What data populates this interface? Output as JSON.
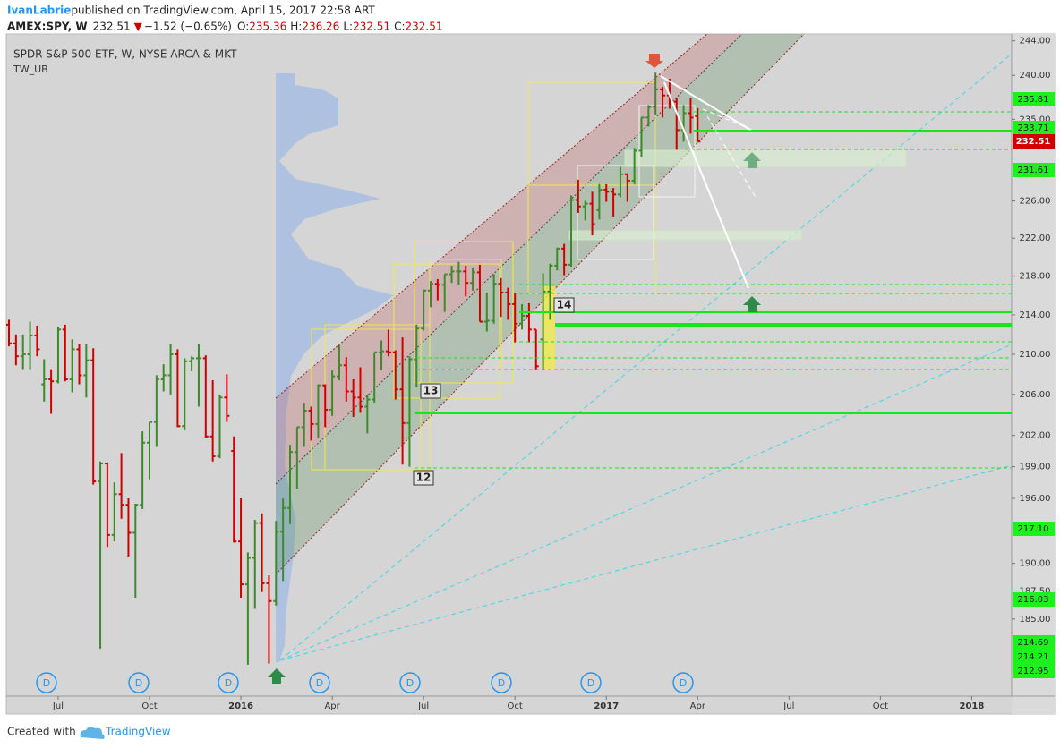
{
  "header": {
    "author": "IvanLabrie",
    "published": " published on TradingView.com, April 15, 2017 22:58 ART",
    "symbol": "AMEX:SPY, W",
    "last": "232.51",
    "direction": "▼",
    "change": "−1.52 (−0.65%)",
    "open_label": "O:",
    "open": "235.36",
    "high_label": "H:",
    "high": "236.26",
    "low_label": "L:",
    "low": "232.51",
    "close_label": "C:",
    "close": "232.51"
  },
  "footer": {
    "created": "Created with",
    "brand": "TradingView"
  },
  "chart_data": {
    "type": "ohlc",
    "title": "SPDR S&P 500 ETF, W, NYSE ARCA & MKT",
    "subtitle": "TW_UB",
    "log_scale": true,
    "grid": false,
    "up_color": "#3d8a2a",
    "down_color": "#d10000",
    "ylim": [
      178.3,
      244.8
    ],
    "yticks": [
      {
        "value": 244,
        "label": "244.00"
      },
      {
        "value": 240,
        "label": "240.00"
      },
      {
        "value": 235,
        "label": "235.00"
      },
      {
        "value": 226,
        "label": "226.00"
      },
      {
        "value": 222,
        "label": "222.00"
      },
      {
        "value": 218,
        "label": "218.00"
      },
      {
        "value": 214,
        "label": "214.00"
      },
      {
        "value": 210,
        "label": "210.00"
      },
      {
        "value": 206,
        "label": "206.00"
      },
      {
        "value": 202,
        "label": "202.00"
      },
      {
        "value": 199,
        "label": "199.00"
      },
      {
        "value": 196,
        "label": "196.00"
      },
      {
        "value": 190,
        "label": "190.00"
      },
      {
        "value": 187.5,
        "label": "187.50"
      },
      {
        "value": 185,
        "label": "185.00"
      }
    ],
    "price_labels": [
      "235.81",
      "233.71",
      "232.51",
      "231.61",
      "217.10",
      "216.03",
      "214.69",
      "214.21",
      "212.95"
    ],
    "annotations": [
      "12",
      "13",
      "14"
    ],
    "event_markers": [
      "D",
      "D",
      "D",
      "D",
      "D",
      "D",
      "D",
      "D"
    ],
    "categories": [
      null,
      null,
      null,
      null,
      null,
      null,
      null,
      "Jul",
      null,
      null,
      null,
      null,
      null,
      null,
      null,
      null,
      null,
      null,
      null,
      null,
      "Oct",
      null,
      null,
      null,
      null,
      null,
      null,
      null,
      null,
      null,
      null,
      null,
      null,
      "2016",
      null,
      null,
      null,
      null,
      null,
      null,
      null,
      null,
      null,
      null,
      null,
      null,
      "Apr",
      null,
      null,
      null,
      null,
      null,
      null,
      null,
      null,
      null,
      null,
      null,
      null,
      "Jul",
      null,
      null,
      null,
      null,
      null,
      null,
      null,
      null,
      null,
      null,
      null,
      null,
      "Oct",
      null,
      null,
      null,
      null,
      null,
      null,
      null,
      null,
      null,
      null,
      null,
      null,
      "2017",
      null,
      null,
      null,
      null,
      null,
      null,
      null,
      null,
      null,
      null,
      null,
      null,
      "Apr",
      null,
      null,
      null,
      null,
      null,
      null,
      null,
      null,
      null,
      null,
      null,
      null,
      "Jul",
      null,
      null,
      null,
      null,
      null,
      null,
      null,
      null,
      null,
      null,
      null,
      null,
      "Oct",
      null,
      null,
      null,
      null,
      null,
      null,
      null,
      null,
      null,
      null,
      null,
      null,
      "2018",
      null,
      null,
      null,
      null,
      null
    ],
    "open": [
      213,
      211.1,
      209.8,
      210,
      211.9,
      207,
      207.5,
      207.3,
      212.5,
      207.5,
      210.5,
      207.9,
      209.4,
      197.6,
      199.3,
      192.6,
      196.4,
      195.4,
      192.8,
      195.4,
      201.3,
      203.3,
      207.5,
      207.9,
      210,
      202.9,
      209.3,
      209.6,
      209.6,
      201.9,
      200,
      205.7,
      200.5,
      192,
      188.1,
      190.5,
      193.7,
      188.2,
      186.6,
      192.9,
      195.1,
      200.4,
      202.8,
      204.4,
      203.1,
      206.9,
      204.5,
      207.8,
      208.9,
      206.3,
      205.7,
      204.8,
      205.5,
      210.2,
      210.3,
      210.2,
      206.5,
      203.2,
      209.5,
      212.6,
      216.5,
      217.2,
      217.1,
      218.2,
      218.5,
      218.5,
      217.3,
      218.4,
      213.3,
      213.4,
      217.2,
      216.3,
      215.1,
      213.1,
      213.9,
      212.5,
      211.5,
      216.4,
      219.1,
      220.9,
      219.2,
      226.1,
      225.4,
      225.7,
      225,
      227.2,
      227,
      226.7,
      228.9,
      228.2,
      231.5,
      235.2,
      236.4,
      238.4,
      237.7,
      237,
      233.8,
      235.7,
      235.36,
      null,
      null,
      null,
      null,
      null,
      null,
      null,
      null,
      null,
      null,
      null,
      null,
      null,
      null,
      null,
      null,
      null,
      null,
      null,
      null,
      null,
      null,
      null,
      null,
      null,
      null,
      null,
      null,
      null,
      null,
      null,
      null,
      null,
      null,
      null,
      null,
      null,
      null,
      null,
      null,
      null,
      null,
      null,
      null
    ],
    "high": [
      213.5,
      212,
      212,
      213.3,
      212.9,
      209.5,
      208.5,
      212.8,
      213,
      211.5,
      211,
      211,
      210.6,
      199.5,
      199.4,
      197.5,
      200.3,
      196,
      195.5,
      202.4,
      203.3,
      207.9,
      209,
      211,
      210.5,
      209.6,
      209.8,
      211,
      209.9,
      207.4,
      206,
      208,
      201.9,
      196,
      191,
      194,
      194.6,
      188.9,
      193.9,
      196,
      201.1,
      202.8,
      205.2,
      204.8,
      207,
      207,
      208.4,
      210.9,
      209.7,
      207.5,
      208.7,
      206,
      210.2,
      211.4,
      212.5,
      210.4,
      211.7,
      209.8,
      213,
      216.6,
      217.5,
      217.7,
      218.2,
      219.1,
      219.5,
      219.1,
      218.9,
      219.2,
      216.3,
      218.2,
      217.8,
      216.8,
      216.2,
      215.1,
      215.2,
      212.5,
      218.3,
      219.3,
      221,
      221.4,
      226.6,
      228.3,
      226,
      227,
      227.8,
      227.8,
      227.4,
      229.7,
      229,
      231.8,
      235.2,
      236.6,
      240.3,
      238.7,
      239.6,
      237.4,
      236.6,
      237.4,
      236.26,
      null,
      null,
      null,
      null,
      null,
      null,
      null,
      null,
      null,
      null,
      null,
      null,
      null,
      null,
      null,
      null,
      null,
      null,
      null,
      null,
      null,
      null,
      null,
      null,
      null,
      null,
      null,
      null,
      null,
      null,
      null,
      null,
      null,
      null,
      null,
      null,
      null,
      null,
      null,
      null,
      null,
      null,
      null,
      null
    ],
    "low": [
      210.8,
      208.9,
      208.5,
      208.5,
      209.8,
      205.3,
      204.1,
      207.1,
      207.3,
      206.2,
      207,
      205.7,
      197.3,
      182.4,
      191.5,
      192,
      194.1,
      190.6,
      186.9,
      195,
      197.8,
      200.9,
      206.3,
      206,
      202.8,
      202.5,
      208.3,
      204.8,
      201.8,
      199.5,
      199.8,
      203.3,
      191.9,
      186.9,
      181,
      185.9,
      187.4,
      181.1,
      186.2,
      188.4,
      193.6,
      196.9,
      200.9,
      201.5,
      201.8,
      202.8,
      203.9,
      207.4,
      205.3,
      203.8,
      204.2,
      202.2,
      205.2,
      208.4,
      209.8,
      205.5,
      199.2,
      199,
      206.7,
      212.4,
      214.8,
      215.5,
      214.3,
      217.3,
      217.1,
      215.9,
      216.5,
      213.3,
      212.3,
      213.1,
      213.8,
      213.5,
      211.2,
      212.5,
      211.2,
      208.4,
      208.4,
      213.5,
      218.6,
      218.1,
      219,
      224.7,
      223.9,
      222.3,
      224,
      225.9,
      224.3,
      226.4,
      225.9,
      227.8,
      230.8,
      234.2,
      235.5,
      235.2,
      236.2,
      231.6,
      232.5,
      233.4,
      232.51,
      null,
      null,
      null,
      null,
      null,
      null,
      null,
      null,
      null,
      null,
      null,
      null,
      null,
      null,
      null,
      null,
      null,
      null,
      null,
      null,
      null,
      null,
      null,
      null,
      null,
      null,
      null,
      null,
      null,
      null,
      null,
      null,
      null,
      null,
      null,
      null,
      null,
      null,
      null,
      null,
      null,
      null,
      null,
      null
    ],
    "close": [
      211.1,
      209.8,
      210,
      211.9,
      210.5,
      207.5,
      207.3,
      212.5,
      207.5,
      210.5,
      207.9,
      209.4,
      197.6,
      199.3,
      192.6,
      196.4,
      195.4,
      192.8,
      195.4,
      201.3,
      203.3,
      207.5,
      207.9,
      210,
      202.9,
      209.3,
      209.6,
      209.6,
      201.9,
      200,
      205.7,
      203.9,
      192,
      188.1,
      190.5,
      193.7,
      188.2,
      186.6,
      192.9,
      195.1,
      200.4,
      202.8,
      204.4,
      203.1,
      206.9,
      204.5,
      207.8,
      208.9,
      206.3,
      205.7,
      204.8,
      205.5,
      210.2,
      210.3,
      210.2,
      206.5,
      203.2,
      209.5,
      212.6,
      216.5,
      217.2,
      217.1,
      218.2,
      218.5,
      218.5,
      217.3,
      218.4,
      213.3,
      213.4,
      217.2,
      216.3,
      215.1,
      213.1,
      213.9,
      212.5,
      208.8,
      216.4,
      219.1,
      220.9,
      219.2,
      226.1,
      225.4,
      225.7,
      223.5,
      227.2,
      227,
      226.7,
      228.9,
      228.2,
      231.5,
      235.2,
      236.4,
      238.4,
      237.7,
      237,
      233.8,
      235.7,
      235.2,
      232.51,
      null,
      null,
      null,
      null,
      null,
      null,
      null,
      null,
      null,
      null,
      null,
      null,
      null,
      null,
      null,
      null,
      null,
      null,
      null,
      null,
      null,
      null,
      null,
      null,
      null,
      null,
      null,
      null,
      null,
      null,
      null,
      null,
      null,
      null,
      null,
      null,
      null,
      null,
      null,
      null,
      null,
      null,
      null,
      null
    ]
  }
}
